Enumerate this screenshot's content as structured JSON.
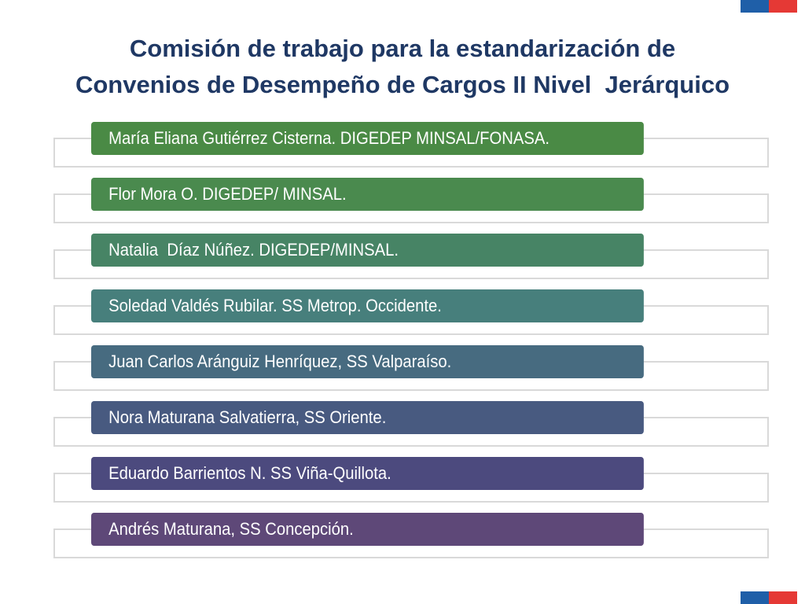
{
  "header": {
    "title_line1": "Comisión de trabajo para la estandarización de",
    "title_line2": "Convenios de Desempeño de Cargos II Nivel  Jerárquico"
  },
  "items": [
    "María Eliana Gutiérrez Cisterna. DIGEDEP MINSAL/FONASA.",
    "Flor Mora O. DIGEDEP/ MINSAL.",
    "Natalia  Díaz Núñez. DIGEDEP/MINSAL.",
    "Soledad Valdés Rubilar. SS Metrop. Occidente.",
    "Juan Carlos Aránguiz Henríquez, SS Valparaíso.",
    "Nora Maturana Salvatierra, SS Oriente.",
    "Eduardo Barrientos N. SS Viña-Quillota.",
    "Andrés Maturana, SS Concepción."
  ]
}
